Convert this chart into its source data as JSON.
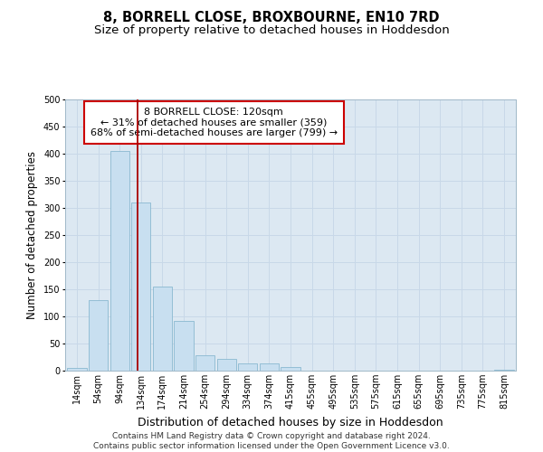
{
  "title": "8, BORRELL CLOSE, BROXBOURNE, EN10 7RD",
  "subtitle": "Size of property relative to detached houses in Hoddesdon",
  "xlabel": "Distribution of detached houses by size in Hoddesdon",
  "ylabel": "Number of detached properties",
  "bar_labels": [
    "14sqm",
    "54sqm",
    "94sqm",
    "134sqm",
    "174sqm",
    "214sqm",
    "254sqm",
    "294sqm",
    "334sqm",
    "374sqm",
    "415sqm",
    "455sqm",
    "495sqm",
    "535sqm",
    "575sqm",
    "615sqm",
    "655sqm",
    "695sqm",
    "735sqm",
    "775sqm",
    "815sqm"
  ],
  "bar_values": [
    5,
    130,
    405,
    310,
    155,
    92,
    28,
    21,
    14,
    14,
    6,
    0,
    0,
    0,
    0,
    0,
    0,
    0,
    0,
    0,
    2
  ],
  "bar_color": "#c8dff0",
  "bar_edge_color": "#8ab8d0",
  "vline_x": 2.85,
  "vline_color": "#aa0000",
  "annotation_line1": "8 BORRELL CLOSE: 120sqm",
  "annotation_line2": "← 31% of detached houses are smaller (359)",
  "annotation_line3": "68% of semi-detached houses are larger (799) →",
  "annotation_box_color": "white",
  "annotation_box_edge_color": "#cc0000",
  "ylim": [
    0,
    500
  ],
  "yticks": [
    0,
    50,
    100,
    150,
    200,
    250,
    300,
    350,
    400,
    450,
    500
  ],
  "grid_color": "#c8d8e8",
  "bg_color": "#dce8f2",
  "footer": "Contains HM Land Registry data © Crown copyright and database right 2024.\nContains public sector information licensed under the Open Government Licence v3.0.",
  "title_fontsize": 10.5,
  "subtitle_fontsize": 9.5,
  "xlabel_fontsize": 9,
  "ylabel_fontsize": 8.5,
  "tick_fontsize": 7,
  "annotation_fontsize": 8,
  "footer_fontsize": 6.5
}
